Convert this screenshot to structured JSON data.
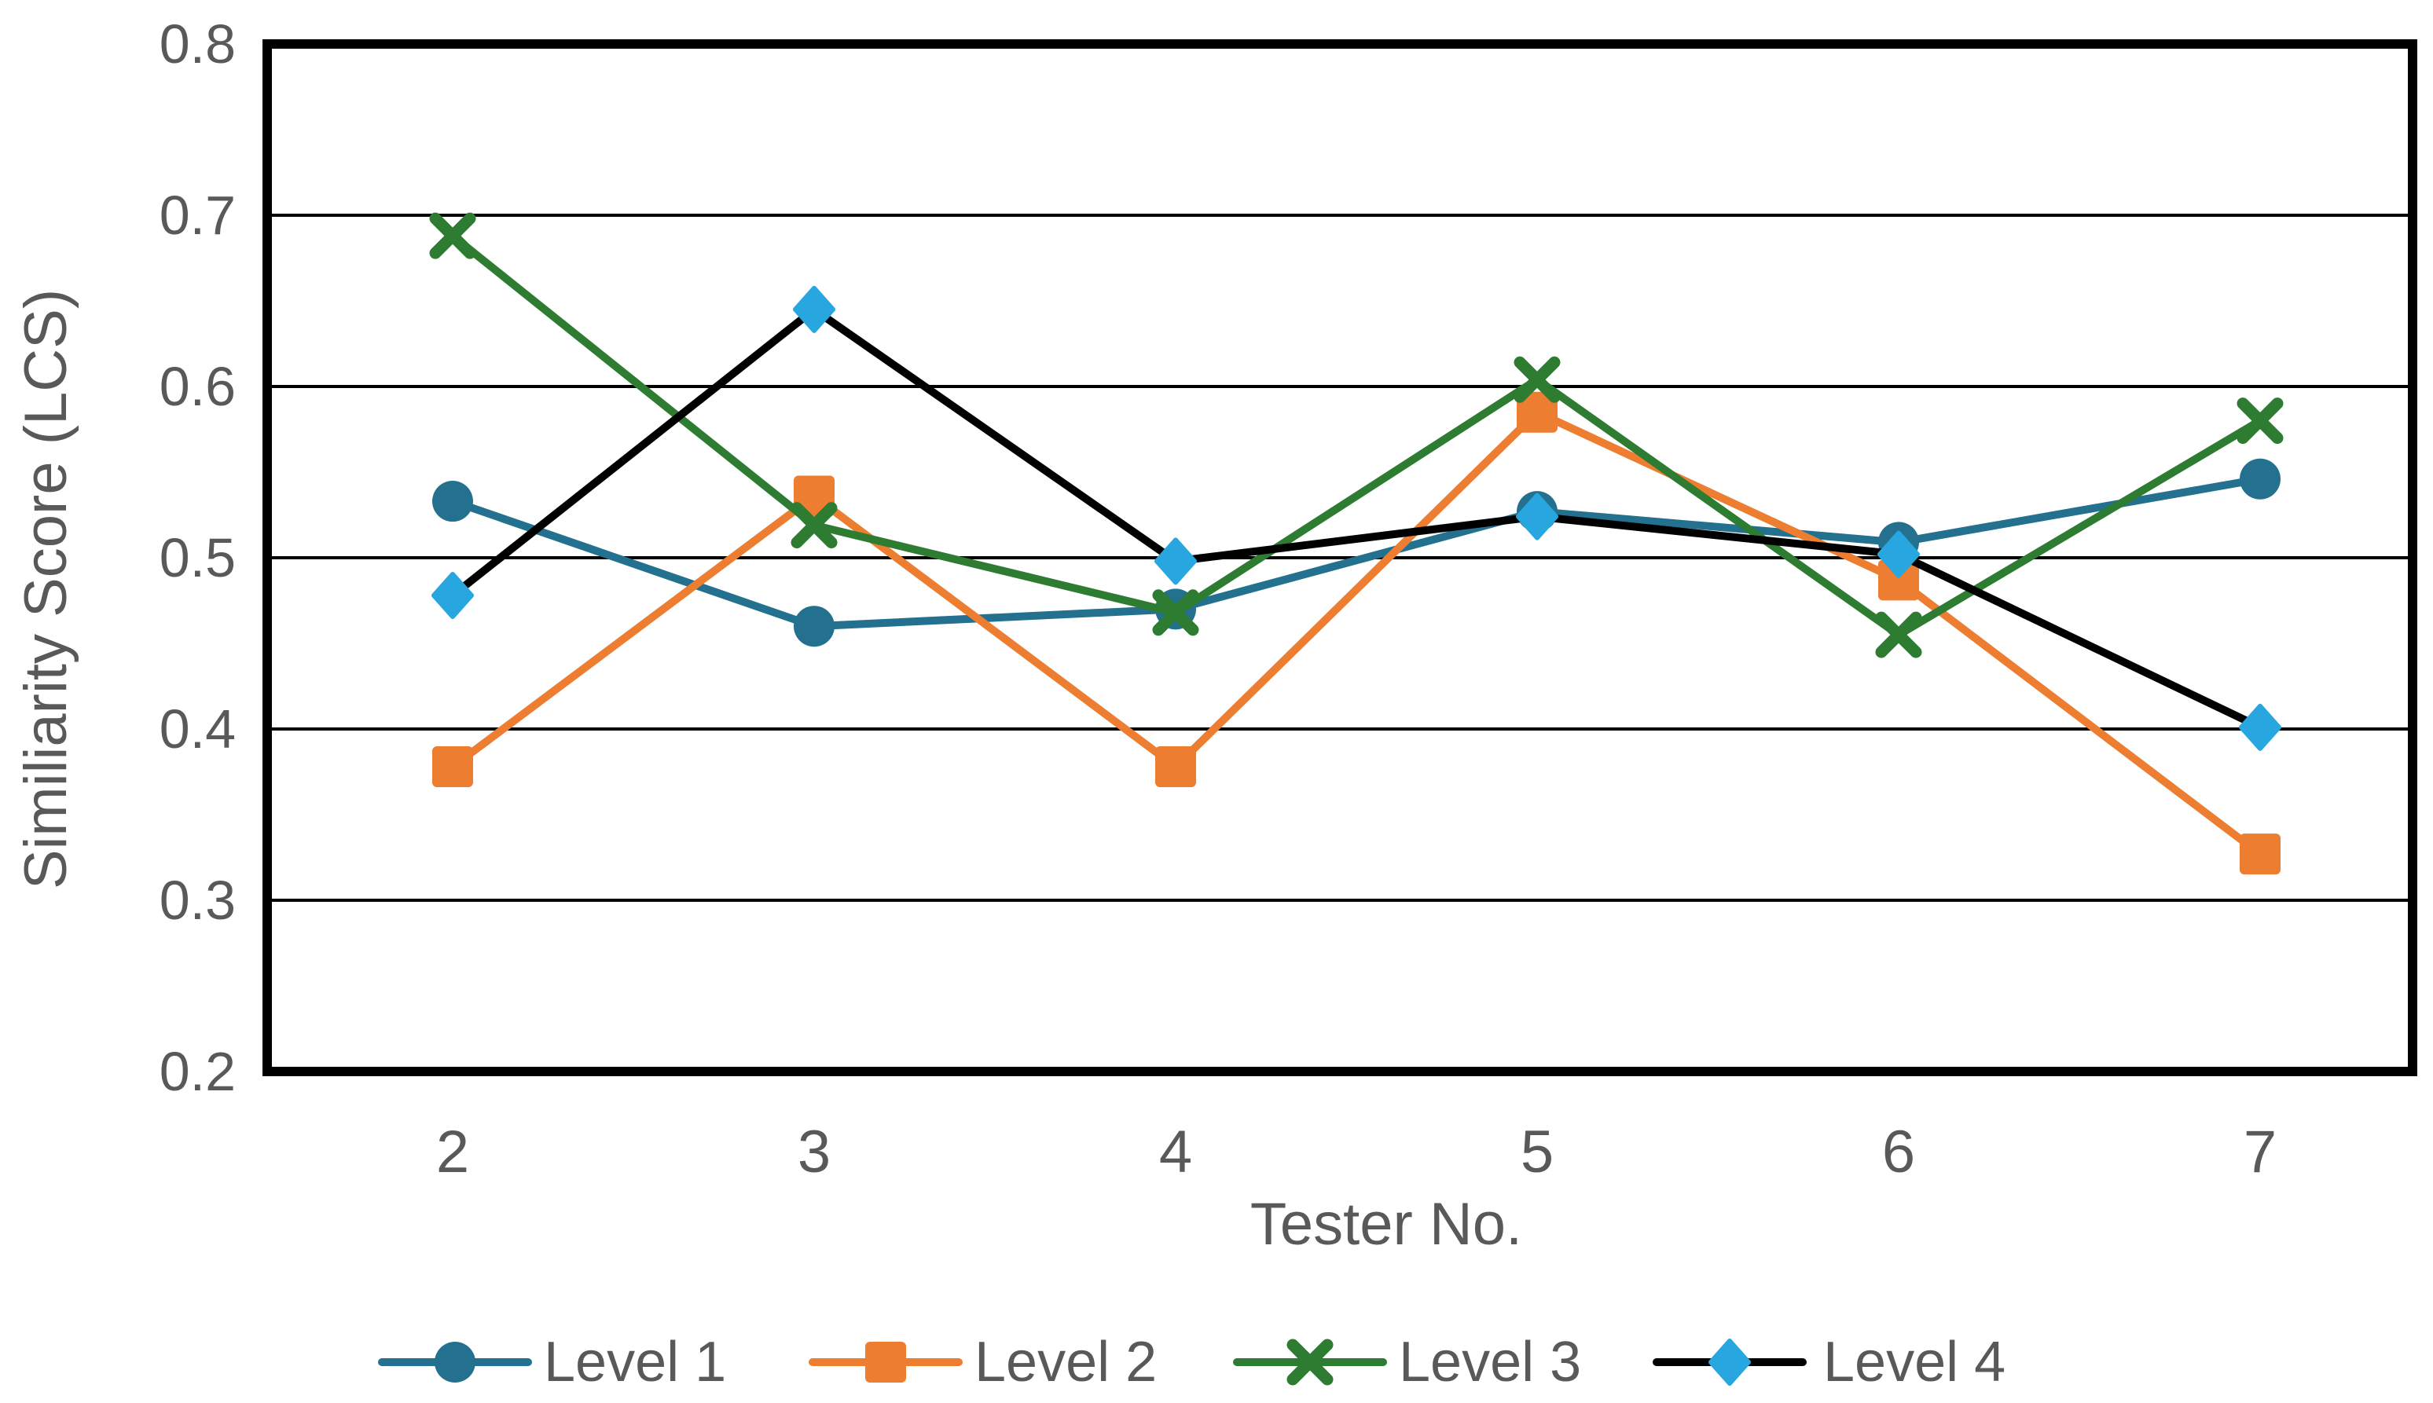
{
  "chart_data": {
    "type": "line",
    "title": "",
    "xlabel": "Tester No.",
    "ylabel": "Similiarity Score (LCS)",
    "categories": [
      "2",
      "3",
      "4",
      "5",
      "6",
      "7"
    ],
    "y_tick_labels": [
      "0.2",
      "0.3",
      "0.4",
      "0.5",
      "0.6",
      "0.7",
      "0.8"
    ],
    "ylim": [
      0.2,
      0.8
    ],
    "y_tick_step": 0.1,
    "grid": "horizontal",
    "legend_position": "bottom",
    "series": [
      {
        "name": "Level 1",
        "marker": "circle",
        "color": "#23708F",
        "marker_color": "#23708F",
        "values": [
          0.533,
          0.46,
          0.47,
          0.527,
          0.509,
          0.546
        ]
      },
      {
        "name": "Level 2",
        "marker": "square",
        "color": "#ED7D31",
        "marker_color": "#ED7D31",
        "values": [
          0.378,
          0.536,
          0.378,
          0.585,
          0.487,
          0.327
        ]
      },
      {
        "name": "Level 3",
        "marker": "x",
        "color": "#2D7C31",
        "marker_color": "#2D7C31",
        "values": [
          0.688,
          0.519,
          0.468,
          0.604,
          0.455,
          0.58
        ]
      },
      {
        "name": "Level 4",
        "marker": "diamond",
        "color": "#000000",
        "marker_color": "#27A6DF",
        "values": [
          0.478,
          0.645,
          0.498,
          0.524,
          0.502,
          0.401
        ]
      }
    ]
  },
  "colors": {
    "text": "#595959",
    "axis": "#000000",
    "background": "#ffffff"
  }
}
